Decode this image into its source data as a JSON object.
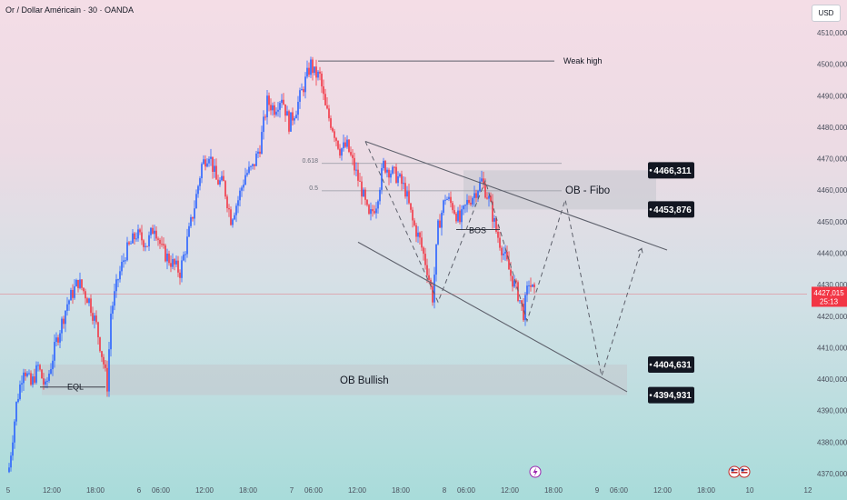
{
  "header": {
    "title": "Or / Dollar Américain · 30 · OANDA",
    "currency": "USD"
  },
  "colors": {
    "up": "#2962ff",
    "down": "#f23645",
    "drawing": "#787b86",
    "zone": "#c4c7ce",
    "price_tag": "#f23645",
    "level_tag": "#131722"
  },
  "chart_data": {
    "type": "candlestick",
    "title": "",
    "ylim": [
      4366000,
      4514000
    ],
    "y_ticks": [
      4370000,
      4380000,
      4390000,
      4400000,
      4410000,
      4420000,
      4430000,
      4440000,
      4450000,
      4460000,
      4470000,
      4480000,
      4490000,
      4500000,
      4510000
    ],
    "y_tick_labels": [
      "4370,000",
      "4380,000",
      "4390,000",
      "4400,000",
      "4410,000",
      "4420,000",
      "4430,000",
      "4440,000",
      "4450,000",
      "4460,000",
      "4470,000",
      "4480,000",
      "4490,000",
      "4500,000",
      "4510,000"
    ],
    "x_tick_labels": [
      "5",
      "12:00",
      "18:00",
      "6",
      "06:00",
      "12:00",
      "18:00",
      "7",
      "06:00",
      "12:00",
      "18:00",
      "8",
      "06:00",
      "12:00",
      "18:00",
      "9",
      "06:00",
      "12:00",
      "18:00",
      "10",
      "12"
    ],
    "x_tick_bar": [
      0,
      24,
      48,
      72,
      84,
      108,
      132,
      156,
      168,
      192,
      216,
      240,
      252,
      276,
      300,
      324,
      336,
      360,
      384,
      408,
      440
    ],
    "bar_count": 290,
    "last_price": "4427,015",
    "countdown": "25:13",
    "last_price_value": 4427015,
    "level_tags": [
      {
        "label": "4466,311",
        "value": 4466311
      },
      {
        "label": "4453,876",
        "value": 4453876
      },
      {
        "label": "4404,631",
        "value": 4404631
      },
      {
        "label": "4394,931",
        "value": 4394931
      }
    ],
    "zones": [
      {
        "name": "OB - Fibo",
        "bar_from": 250,
        "bar_to": 356,
        "top": 4466311,
        "bottom": 4453876
      },
      {
        "name": "OB Bullish",
        "bar_from": 18,
        "bar_to": 340,
        "top": 4404631,
        "bottom": 4394931
      }
    ],
    "annotations": {
      "weak_high": "Weak high",
      "ob_fibo": "OB - Fibo",
      "ob_bullish": "OB Bullish",
      "bos": "BOS",
      "eql": "EQL",
      "fib_618": "0.618",
      "fib_05": "0.5"
    },
    "fib_levels": [
      {
        "label": "0.618",
        "value": 4468500
      },
      {
        "label": "0.5",
        "value": 4459800
      }
    ],
    "weak_high_value": 4501000,
    "eql_value": 4397500,
    "bos_value": 4447500,
    "channel_upper": [
      [
        196,
        4475500
      ],
      [
        362,
        4441000
      ]
    ],
    "channel_lower": [
      [
        192,
        4443500
      ],
      [
        340,
        4396000
      ]
    ],
    "price_path": [
      [
        0,
        4372
      ],
      [
        4,
        4392
      ],
      [
        8,
        4404
      ],
      [
        12,
        4398
      ],
      [
        16,
        4404
      ],
      [
        20,
        4397
      ],
      [
        26,
        4412
      ],
      [
        32,
        4424
      ],
      [
        38,
        4431
      ],
      [
        44,
        4425
      ],
      [
        48,
        4417
      ],
      [
        52,
        4405
      ],
      [
        54,
        4398
      ],
      [
        56,
        4421
      ],
      [
        60,
        4432
      ],
      [
        64,
        4440
      ],
      [
        70,
        4446
      ],
      [
        76,
        4443
      ],
      [
        80,
        4449
      ],
      [
        84,
        4441
      ],
      [
        88,
        4438
      ],
      [
        94,
        4434
      ],
      [
        98,
        4444
      ],
      [
        102,
        4455
      ],
      [
        106,
        4468
      ],
      [
        110,
        4472
      ],
      [
        114,
        4463
      ],
      [
        118,
        4462
      ],
      [
        122,
        4451
      ],
      [
        126,
        4457
      ],
      [
        130,
        4465
      ],
      [
        134,
        4467
      ],
      [
        138,
        4474
      ],
      [
        142,
        4488
      ],
      [
        146,
        4486
      ],
      [
        150,
        4490
      ],
      [
        154,
        4481
      ],
      [
        158,
        4486
      ],
      [
        162,
        4493
      ],
      [
        166,
        4500
      ],
      [
        168,
        4497
      ],
      [
        171,
        4496
      ],
      [
        174,
        4486
      ],
      [
        178,
        4480
      ],
      [
        182,
        4473
      ],
      [
        186,
        4474
      ],
      [
        190,
        4467
      ],
      [
        194,
        4460
      ],
      [
        198,
        4451
      ],
      [
        202,
        4456
      ],
      [
        206,
        4468
      ],
      [
        210,
        4466
      ],
      [
        214,
        4464
      ],
      [
        218,
        4460
      ],
      [
        222,
        4450
      ],
      [
        226,
        4444
      ],
      [
        230,
        4435
      ],
      [
        233,
        4426
      ],
      [
        236,
        4448
      ],
      [
        240,
        4458
      ],
      [
        244,
        4455
      ],
      [
        248,
        4450
      ],
      [
        252,
        4456
      ],
      [
        256,
        4459
      ],
      [
        260,
        4463
      ],
      [
        264,
        4457
      ],
      [
        268,
        4447
      ],
      [
        272,
        4440
      ],
      [
        276,
        4433
      ],
      [
        280,
        4427
      ],
      [
        283,
        4421
      ],
      [
        286,
        4431
      ],
      [
        289,
        4427
      ]
    ],
    "projection": [
      [
        196,
        4475500
      ],
      [
        236,
        4424500
      ],
      [
        262,
        4463000
      ],
      [
        285,
        4418500
      ],
      [
        306,
        4457000
      ],
      [
        326,
        4401000
      ],
      [
        348,
        4441500
      ]
    ]
  }
}
